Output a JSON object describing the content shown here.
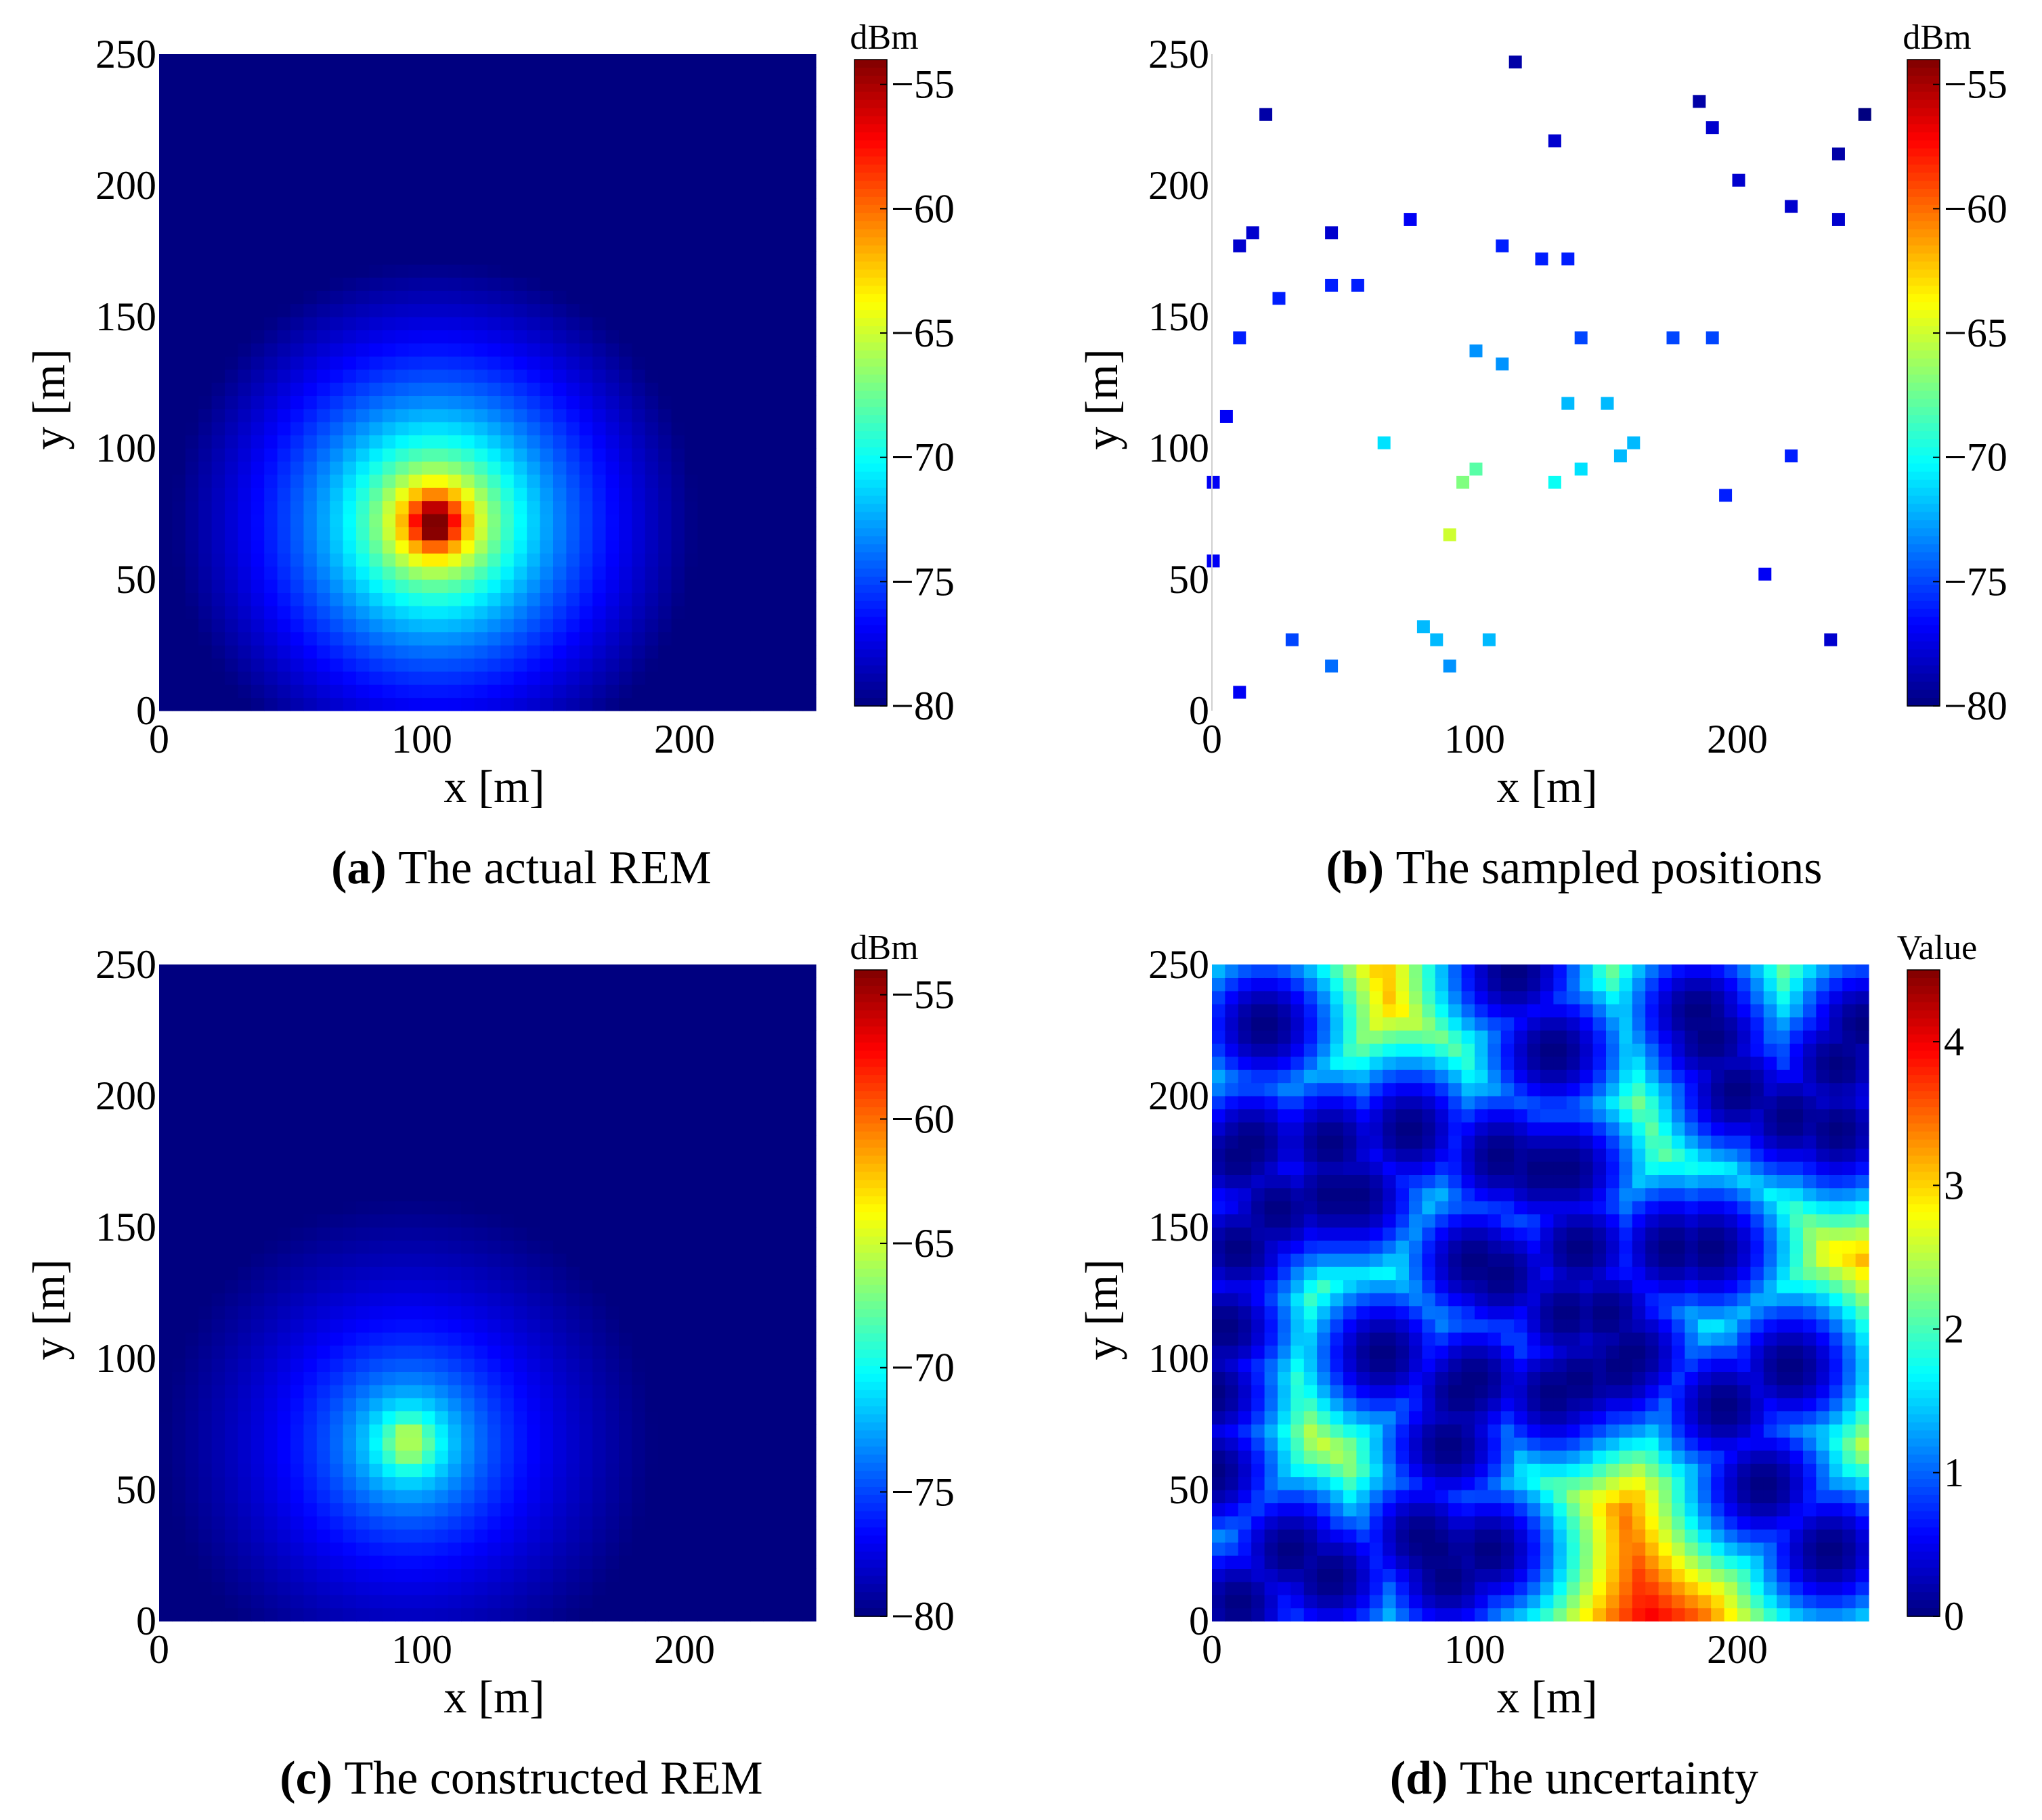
{
  "chart_data": [
    {
      "type": "heatmap",
      "panel": "a",
      "caption_label": "(a)",
      "caption_text": " The actual REM",
      "xlabel": "x [m]",
      "ylabel": "y [m]",
      "xlim": [
        0,
        250
      ],
      "ylim": [
        0,
        250
      ],
      "xticks": [
        "0",
        "100",
        "200"
      ],
      "yticks": [
        "0",
        "50",
        "100",
        "150",
        "200",
        "250"
      ],
      "colorbar": {
        "unit": "dBm",
        "min": -80,
        "max": -54,
        "ticks": [
          "−55",
          "−60",
          "−65",
          "−70",
          "−75",
          "−80"
        ],
        "tick_values": [
          -55,
          -60,
          -65,
          -70,
          -75,
          -80
        ]
      },
      "field": {
        "model": "path_loss",
        "source_xy": [
          105,
          72
        ],
        "value_at_source": -54,
        "falloff_db_per_decade": 20,
        "background": -80,
        "grid_step": 5
      }
    },
    {
      "type": "scatter",
      "panel": "b",
      "caption_label": "(b)",
      "caption_text": " The sampled positions",
      "xlabel": "x [m]",
      "ylabel": "y [m]",
      "xlim": [
        0,
        250
      ],
      "ylim": [
        0,
        250
      ],
      "xticks": [
        "0",
        "100",
        "200"
      ],
      "yticks": [
        "0",
        "50",
        "100",
        "150",
        "200",
        "250"
      ],
      "colorbar": {
        "unit": "dBm",
        "min": -80,
        "max": -54,
        "ticks": [
          "−55",
          "−60",
          "−65",
          "−70",
          "−75",
          "−80"
        ],
        "tick_values": [
          -55,
          -60,
          -65,
          -70,
          -75,
          -80
        ]
      },
      "samples": [
        {
          "x": 115,
          "y": 247,
          "v": -79
        },
        {
          "x": 20,
          "y": 227,
          "v": -79
        },
        {
          "x": 130,
          "y": 217,
          "v": -78
        },
        {
          "x": 185,
          "y": 232,
          "v": -79
        },
        {
          "x": 190,
          "y": 222,
          "v": -78
        },
        {
          "x": 248,
          "y": 227,
          "v": -80
        },
        {
          "x": 238,
          "y": 212,
          "v": -79
        },
        {
          "x": 200,
          "y": 202,
          "v": -78
        },
        {
          "x": 220,
          "y": 192,
          "v": -78
        },
        {
          "x": 238,
          "y": 187,
          "v": -78
        },
        {
          "x": 10,
          "y": 177,
          "v": -78
        },
        {
          "x": 15,
          "y": 182,
          "v": -78
        },
        {
          "x": 45,
          "y": 182,
          "v": -78
        },
        {
          "x": 75,
          "y": 187,
          "v": -77
        },
        {
          "x": 110,
          "y": 177,
          "v": -76
        },
        {
          "x": 125,
          "y": 172,
          "v": -76
        },
        {
          "x": 135,
          "y": 172,
          "v": -76
        },
        {
          "x": 25,
          "y": 157,
          "v": -76
        },
        {
          "x": 45,
          "y": 162,
          "v": -76
        },
        {
          "x": 55,
          "y": 162,
          "v": -76
        },
        {
          "x": 10,
          "y": 142,
          "v": -76
        },
        {
          "x": 140,
          "y": 142,
          "v": -75
        },
        {
          "x": 175,
          "y": 142,
          "v": -75
        },
        {
          "x": 190,
          "y": 142,
          "v": -75
        },
        {
          "x": 100,
          "y": 137,
          "v": -73
        },
        {
          "x": 110,
          "y": 132,
          "v": -73
        },
        {
          "x": 5,
          "y": 112,
          "v": -77
        },
        {
          "x": 135,
          "y": 117,
          "v": -72
        },
        {
          "x": 150,
          "y": 117,
          "v": -72
        },
        {
          "x": 65,
          "y": 102,
          "v": -71
        },
        {
          "x": 160,
          "y": 102,
          "v": -72
        },
        {
          "x": 155,
          "y": 97,
          "v": -72
        },
        {
          "x": 220,
          "y": 97,
          "v": -76
        },
        {
          "x": 0,
          "y": 87,
          "v": -77
        },
        {
          "x": 100,
          "y": 92,
          "v": -68
        },
        {
          "x": 95,
          "y": 87,
          "v": -67
        },
        {
          "x": 130,
          "y": 87,
          "v": -70
        },
        {
          "x": 140,
          "y": 92,
          "v": -71
        },
        {
          "x": 195,
          "y": 82,
          "v": -76
        },
        {
          "x": 90,
          "y": 67,
          "v": -65
        },
        {
          "x": 0,
          "y": 57,
          "v": -77
        },
        {
          "x": 210,
          "y": 52,
          "v": -77
        },
        {
          "x": 30,
          "y": 27,
          "v": -75
        },
        {
          "x": 80,
          "y": 32,
          "v": -72
        },
        {
          "x": 85,
          "y": 27,
          "v": -72
        },
        {
          "x": 105,
          "y": 27,
          "v": -72
        },
        {
          "x": 235,
          "y": 27,
          "v": -78
        },
        {
          "x": 45,
          "y": 17,
          "v": -74
        },
        {
          "x": 90,
          "y": 17,
          "v": -73
        },
        {
          "x": 10,
          "y": 7,
          "v": -77
        }
      ]
    },
    {
      "type": "heatmap",
      "panel": "c",
      "caption_label": "(c)",
      "caption_text": " The constructed REM",
      "xlabel": "x [m]",
      "ylabel": "y [m]",
      "xlim": [
        0,
        250
      ],
      "ylim": [
        0,
        250
      ],
      "xticks": [
        "0",
        "100",
        "200"
      ],
      "yticks": [
        "0",
        "50",
        "100",
        "150",
        "200",
        "250"
      ],
      "colorbar": {
        "unit": "dBm",
        "min": -80,
        "max": -54,
        "ticks": [
          "−55",
          "−60",
          "−65",
          "−70",
          "−75",
          "−80"
        ],
        "tick_values": [
          -55,
          -60,
          -65,
          -70,
          -75,
          -80
        ]
      },
      "field": {
        "model": "smooth",
        "source_xy": [
          95,
          68
        ],
        "value_at_source": -66,
        "falloff_db_per_decade": 11,
        "background": -80,
        "grid_step": 5
      }
    },
    {
      "type": "heatmap",
      "panel": "d",
      "caption_label": "(d)",
      "caption_text": " The uncertainty",
      "xlabel": "x [m]",
      "ylabel": "y [m]",
      "xlim": [
        0,
        250
      ],
      "ylim": [
        0,
        250
      ],
      "xticks": [
        "0",
        "100",
        "200"
      ],
      "yticks": [
        "0",
        "50",
        "100",
        "150",
        "200",
        "250"
      ],
      "colorbar": {
        "unit": "Value",
        "min": 0,
        "max": 4.5,
        "ticks": [
          "4",
          "3",
          "2",
          "1",
          "0"
        ],
        "tick_values": [
          4,
          3,
          2,
          1,
          0
        ]
      },
      "field": {
        "model": "uncertainty",
        "max_value": 4.5,
        "length_scale": 45,
        "grid_step": 5
      }
    }
  ]
}
